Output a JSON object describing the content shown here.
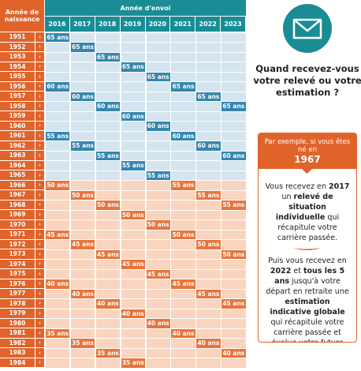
{
  "table": {
    "header_birth": "Année de naissance",
    "header_send": "Année d'envoi",
    "years": [
      "2016",
      "2017",
      "2018",
      "2019",
      "2020",
      "2021",
      "2022",
      "2023"
    ],
    "rows": [
      {
        "year": "1951",
        "color": "#3586b0",
        "cells": [
          "65 ans",
          null,
          null,
          null,
          null,
          null,
          null,
          null
        ]
      },
      {
        "year": "1952",
        "color": "#3586b0",
        "cells": [
          null,
          "65 ans",
          null,
          null,
          null,
          null,
          null,
          null
        ]
      },
      {
        "year": "1953",
        "color": "#3586b0",
        "cells": [
          null,
          null,
          "65 ans",
          null,
          null,
          null,
          null,
          null
        ]
      },
      {
        "year": "1954",
        "color": "#3586b0",
        "cells": [
          null,
          null,
          null,
          "65 ans",
          null,
          null,
          null,
          null
        ]
      },
      {
        "year": "1955",
        "color": "#3586b0",
        "cells": [
          null,
          null,
          null,
          null,
          "65 ans",
          null,
          null,
          null
        ]
      },
      {
        "year": "1956",
        "color": "#3586b0",
        "cells": [
          "60 ans",
          null,
          null,
          null,
          null,
          "65 ans",
          null,
          null
        ]
      },
      {
        "year": "1957",
        "color": "#3586b0",
        "cells": [
          null,
          "60 ans",
          null,
          null,
          null,
          null,
          "65 ans",
          null
        ]
      },
      {
        "year": "1958",
        "color": "#3586b0",
        "cells": [
          null,
          null,
          "60 ans",
          null,
          null,
          null,
          null,
          "65 ans"
        ]
      },
      {
        "year": "1959",
        "color": "#3586b0",
        "cells": [
          null,
          null,
          null,
          "60 ans",
          null,
          null,
          null,
          null
        ]
      },
      {
        "year": "1960",
        "color": "#3586b0",
        "cells": [
          null,
          null,
          null,
          null,
          "60 ans",
          null,
          null,
          null
        ]
      },
      {
        "year": "1961",
        "color": "#3586b0",
        "cells": [
          "55 ans",
          null,
          null,
          null,
          null,
          "60 ans",
          null,
          null
        ]
      },
      {
        "year": "1962",
        "color": "#3586b0",
        "cells": [
          null,
          "55 ans",
          null,
          null,
          null,
          null,
          "60 ans",
          null
        ]
      },
      {
        "year": "1963",
        "color": "#3586b0",
        "cells": [
          null,
          null,
          "55 ans",
          null,
          null,
          null,
          null,
          "60 ans"
        ]
      },
      {
        "year": "1964",
        "color": "#3586b0",
        "cells": [
          null,
          null,
          null,
          "55 ans",
          null,
          null,
          null,
          null
        ]
      },
      {
        "year": "1965",
        "color": "#3586b0",
        "cells": [
          null,
          null,
          null,
          null,
          "55 ans",
          null,
          null,
          null
        ]
      },
      {
        "year": "1966",
        "color": "#e8743b",
        "cells": [
          "50 ans",
          null,
          null,
          null,
          null,
          "55 ans",
          null,
          null
        ]
      },
      {
        "year": "1967",
        "color": "#e8743b",
        "cells": [
          null,
          "50 ans",
          null,
          null,
          null,
          null,
          "55 ans",
          null
        ]
      },
      {
        "year": "1968",
        "color": "#e8743b",
        "cells": [
          null,
          null,
          "50 ans",
          null,
          null,
          null,
          null,
          "55 ans"
        ]
      },
      {
        "year": "1969",
        "color": "#e8743b",
        "cells": [
          null,
          null,
          null,
          "50 ans",
          null,
          null,
          null,
          null
        ]
      },
      {
        "year": "1970",
        "color": "#e8743b",
        "cells": [
          null,
          null,
          null,
          null,
          "50 ans",
          null,
          null,
          null
        ]
      },
      {
        "year": "1971",
        "color": "#e8743b",
        "cells": [
          "45 ans",
          null,
          null,
          null,
          null,
          "50 ans",
          null,
          null
        ]
      },
      {
        "year": "1972",
        "color": "#e8743b",
        "cells": [
          null,
          "45 ans",
          null,
          null,
          null,
          null,
          "50 ans",
          null
        ]
      },
      {
        "year": "1973",
        "color": "#e8743b",
        "cells": [
          null,
          null,
          "45 ans",
          null,
          null,
          null,
          null,
          "50 ans"
        ]
      },
      {
        "year": "1974",
        "color": "#e8743b",
        "cells": [
          null,
          null,
          null,
          "45 ans",
          null,
          null,
          null,
          null
        ]
      },
      {
        "year": "1975",
        "color": "#e8743b",
        "cells": [
          null,
          null,
          null,
          null,
          "45 ans",
          null,
          null,
          null
        ]
      },
      {
        "year": "1976",
        "color": "#e8743b",
        "cells": [
          "40 ans",
          null,
          null,
          null,
          null,
          "45 ans",
          null,
          null
        ]
      },
      {
        "year": "1977",
        "color": "#e8743b",
        "cells": [
          null,
          "40 ans",
          null,
          null,
          null,
          null,
          "45 ans",
          null
        ]
      },
      {
        "year": "1978",
        "color": "#e8743b",
        "cells": [
          null,
          null,
          "40 ans",
          null,
          null,
          null,
          null,
          "45 ans"
        ]
      },
      {
        "year": "1979",
        "color": "#e8743b",
        "cells": [
          null,
          null,
          null,
          "40 ans",
          null,
          null,
          null,
          null
        ]
      },
      {
        "year": "1980",
        "color": "#e8743b",
        "cells": [
          null,
          null,
          null,
          null,
          "40 ans",
          null,
          null,
          null
        ]
      },
      {
        "year": "1981",
        "color": "#e8743b",
        "cells": [
          "35 ans",
          null,
          null,
          null,
          null,
          "40 ans",
          null,
          null
        ]
      },
      {
        "year": "1982",
        "color": "#e8743b",
        "cells": [
          null,
          "35 ans",
          null,
          null,
          null,
          null,
          "40 ans",
          null
        ]
      },
      {
        "year": "1983",
        "color": "#e8743b",
        "cells": [
          null,
          null,
          "35 ans",
          null,
          null,
          null,
          null,
          "40 ans"
        ]
      },
      {
        "year": "1984",
        "color": "#e8743b",
        "cells": [
          null,
          null,
          null,
          "35 ans",
          null,
          null,
          null,
          null
        ]
      }
    ]
  },
  "panel": {
    "title": "Quand recevez-vous votre relevé ou votre estimation ?",
    "example_intro": "Par exemple, si vous êtes né en",
    "example_year": "1967",
    "paragraphs": [
      [
        {
          "text": "Vous recevez en "
        },
        {
          "text": "2017",
          "bold": true
        },
        {
          "text": " un "
        },
        {
          "text": "relevé de situation individuelle",
          "bold": true
        },
        {
          "text": " qui récapitule votre carrière passée."
        }
      ],
      [
        {
          "text": "Puis vous recevez en "
        },
        {
          "text": "2022",
          "bold": true
        },
        {
          "text": " et "
        },
        {
          "text": "tous les 5 ans",
          "bold": true
        },
        {
          "text": " jusqu'à votre départ en retraite une "
        },
        {
          "text": "estimation indicative globale",
          "bold": true
        },
        {
          "text": " qui récapitule votre carrière passée et évalue votre future retraite globale."
        }
      ]
    ]
  }
}
